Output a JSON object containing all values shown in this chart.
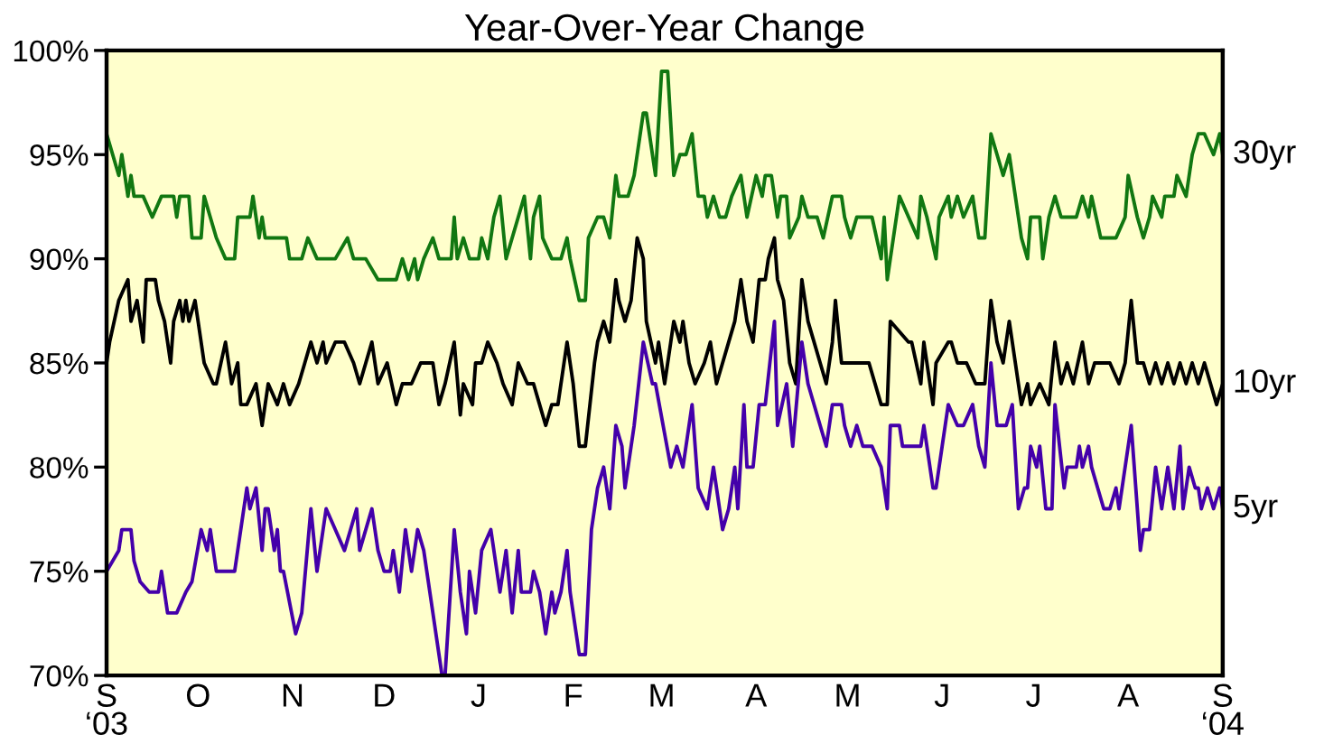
{
  "chart_data": {
    "type": "line",
    "title": "Year-Over-Year Change",
    "xlim": [
      "2003-09-01",
      "2004-09-01"
    ],
    "xticks": [
      {
        "value": "2003-09-01",
        "label": "S\n‘03"
      },
      {
        "value": "2003-10-01",
        "label": "O"
      },
      {
        "value": "2003-11-01",
        "label": "N"
      },
      {
        "value": "2003-12-01",
        "label": "D"
      },
      {
        "value": "2004-01-01",
        "label": "J"
      },
      {
        "value": "2004-02-01",
        "label": "F"
      },
      {
        "value": "2004-03-01",
        "label": "M"
      },
      {
        "value": "2004-04-01",
        "label": "A"
      },
      {
        "value": "2004-05-01",
        "label": "M"
      },
      {
        "value": "2004-06-01",
        "label": "J"
      },
      {
        "value": "2004-07-01",
        "label": "J"
      },
      {
        "value": "2004-08-01",
        "label": "A"
      },
      {
        "value": "2004-09-01",
        "label": "S\n‘04"
      }
    ],
    "ylim": [
      70,
      100
    ],
    "yticks": [
      {
        "value": 70,
        "label": "70%"
      },
      {
        "value": 75,
        "label": "75%"
      },
      {
        "value": 80,
        "label": "80%"
      },
      {
        "value": 85,
        "label": "85%"
      },
      {
        "value": 90,
        "label": "90%"
      },
      {
        "value": 95,
        "label": "95%"
      },
      {
        "value": 100,
        "label": "100%"
      }
    ],
    "grid": false,
    "legend": false,
    "marker": "none",
    "line_style": "solid",
    "series": [
      {
        "name": "30yr",
        "color": "#117711",
        "x": [
          "2003-09-01",
          "2003-09-03",
          "2003-09-05",
          "2003-09-06",
          "2003-09-08",
          "2003-09-09",
          "2003-09-10",
          "2003-09-13",
          "2003-09-16",
          "2003-09-19",
          "2003-09-23",
          "2003-09-24",
          "2003-09-25",
          "2003-09-28",
          "2003-09-29",
          "2003-10-02",
          "2003-10-03",
          "2003-10-05",
          "2003-10-07",
          "2003-10-10",
          "2003-10-13",
          "2003-10-14",
          "2003-10-18",
          "2003-10-19",
          "2003-10-21",
          "2003-10-22",
          "2003-10-23",
          "2003-10-30",
          "2003-10-31",
          "2003-11-04",
          "2003-11-06",
          "2003-11-09",
          "2003-11-15",
          "2003-11-19",
          "2003-11-21",
          "2003-11-25",
          "2003-11-29",
          "2003-12-05",
          "2003-12-07",
          "2003-12-09",
          "2003-12-11",
          "2003-12-12",
          "2003-12-14",
          "2003-12-17",
          "2003-12-19",
          "2003-12-23",
          "2003-12-24",
          "2003-12-25",
          "2003-12-27",
          "2003-12-29",
          "2004-01-01",
          "2004-01-02",
          "2004-01-04",
          "2004-01-06",
          "2004-01-08",
          "2004-01-10",
          "2004-01-12",
          "2004-01-14",
          "2004-01-16",
          "2004-01-18",
          "2004-01-19",
          "2004-01-21",
          "2004-01-22",
          "2004-01-25",
          "2004-01-28",
          "2004-01-30",
          "2004-01-31",
          "2004-02-03",
          "2004-02-05",
          "2004-02-06",
          "2004-02-09",
          "2004-02-11",
          "2004-02-13",
          "2004-02-15",
          "2004-02-16",
          "2004-02-19",
          "2004-02-21",
          "2004-02-24",
          "2004-02-25",
          "2004-02-27",
          "2004-02-28",
          "2004-03-01",
          "2004-03-03",
          "2004-03-05",
          "2004-03-07",
          "2004-03-09",
          "2004-03-11",
          "2004-03-13",
          "2004-03-15",
          "2004-03-16",
          "2004-03-18",
          "2004-03-20",
          "2004-03-22",
          "2004-03-24",
          "2004-03-27",
          "2004-03-29",
          "2004-04-01",
          "2004-04-03",
          "2004-04-04",
          "2004-04-06",
          "2004-04-08",
          "2004-04-09",
          "2004-04-11",
          "2004-04-12",
          "2004-04-15",
          "2004-04-16",
          "2004-04-18",
          "2004-04-21",
          "2004-04-23",
          "2004-04-26",
          "2004-04-29",
          "2004-04-30",
          "2004-05-02",
          "2004-05-04",
          "2004-05-06",
          "2004-05-09",
          "2004-05-12",
          "2004-05-13",
          "2004-05-14",
          "2004-05-17",
          "2004-05-18",
          "2004-05-21",
          "2004-05-24",
          "2004-05-25",
          "2004-05-27",
          "2004-05-30",
          "2004-05-31",
          "2004-06-03",
          "2004-06-04",
          "2004-06-06",
          "2004-06-08",
          "2004-06-11",
          "2004-06-13",
          "2004-06-15",
          "2004-06-17",
          "2004-06-19",
          "2004-06-21",
          "2004-06-23",
          "2004-06-25",
          "2004-06-27",
          "2004-06-29",
          "2004-06-30",
          "2004-07-03",
          "2004-07-04",
          "2004-07-06",
          "2004-07-08",
          "2004-07-10",
          "2004-07-15",
          "2004-07-17",
          "2004-07-19",
          "2004-07-20",
          "2004-07-23",
          "2004-07-28",
          "2004-07-31",
          "2004-08-01",
          "2004-08-04",
          "2004-08-06",
          "2004-08-08",
          "2004-08-09",
          "2004-08-12",
          "2004-08-13",
          "2004-08-16",
          "2004-08-17",
          "2004-08-20",
          "2004-08-22",
          "2004-08-24",
          "2004-08-26",
          "2004-08-29",
          "2004-08-31",
          "2004-09-01"
        ],
        "values": [
          96,
          95,
          94,
          95,
          93,
          94,
          93,
          93,
          92,
          93,
          93,
          92,
          93,
          93,
          91,
          91,
          93,
          92,
          91,
          90,
          90,
          92,
          92,
          93,
          91,
          92,
          91,
          91,
          90,
          90,
          91,
          90,
          90,
          91,
          90,
          90,
          89,
          89,
          90,
          89,
          90,
          89,
          90,
          91,
          90,
          90,
          92,
          90,
          91,
          90,
          90,
          91,
          90,
          92,
          93,
          90,
          91,
          92,
          93,
          90,
          92,
          93,
          91,
          90,
          90,
          91,
          90,
          88,
          88,
          91,
          92,
          92,
          91,
          94,
          93,
          93,
          94,
          97,
          97,
          95,
          94,
          99,
          99,
          94,
          95,
          95,
          96,
          93,
          93,
          92,
          93,
          92,
          92,
          93,
          94,
          92,
          94,
          93,
          94,
          94,
          92,
          93,
          93,
          91,
          92,
          93,
          92,
          92,
          91,
          93,
          93,
          92,
          91,
          92,
          92,
          92,
          90,
          92,
          89,
          92,
          93,
          92,
          91,
          93,
          92,
          90,
          92,
          93,
          92,
          93,
          92,
          93,
          91,
          91,
          96,
          95,
          94,
          95,
          93,
          91,
          90,
          92,
          92,
          90,
          92,
          93,
          92,
          92,
          93,
          92,
          93,
          91,
          91,
          92,
          94,
          92,
          91,
          92,
          93,
          92,
          93,
          93,
          94,
          93,
          95,
          96,
          96,
          95,
          96,
          95
        ]
      },
      {
        "name": "10yr",
        "color": "#000000",
        "x": [
          "2003-09-01",
          "2003-09-02",
          "2003-09-05",
          "2003-09-08",
          "2003-09-09",
          "2003-09-11",
          "2003-09-13",
          "2003-09-14",
          "2003-09-17",
          "2003-09-18",
          "2003-09-20",
          "2003-09-22",
          "2003-09-23",
          "2003-09-25",
          "2003-09-26",
          "2003-09-27",
          "2003-09-28",
          "2003-09-30",
          "2003-10-01",
          "2003-10-03",
          "2003-10-06",
          "2003-10-07",
          "2003-10-10",
          "2003-10-12",
          "2003-10-14",
          "2003-10-15",
          "2003-10-17",
          "2003-10-20",
          "2003-10-22",
          "2003-10-24",
          "2003-10-27",
          "2003-10-29",
          "2003-10-31",
          "2003-11-03",
          "2003-11-05",
          "2003-11-07",
          "2003-11-09",
          "2003-11-11",
          "2003-11-12",
          "2003-11-15",
          "2003-11-18",
          "2003-11-21",
          "2003-11-23",
          "2003-11-25",
          "2003-11-27",
          "2003-11-29",
          "2003-12-02",
          "2003-12-05",
          "2003-12-07",
          "2003-12-10",
          "2003-12-13",
          "2003-12-17",
          "2003-12-19",
          "2003-12-21",
          "2003-12-24",
          "2003-12-26",
          "2003-12-27",
          "2003-12-30",
          "2003-12-31",
          "2004-01-02",
          "2004-01-04",
          "2004-01-07",
          "2004-01-09",
          "2004-01-12",
          "2004-01-14",
          "2004-01-17",
          "2004-01-19",
          "2004-01-21",
          "2004-01-23",
          "2004-01-25",
          "2004-01-27",
          "2004-01-29",
          "2004-01-30",
          "2004-02-01",
          "2004-02-03",
          "2004-02-05",
          "2004-02-08",
          "2004-02-09",
          "2004-02-11",
          "2004-02-13",
          "2004-02-15",
          "2004-02-16",
          "2004-02-18",
          "2004-02-20",
          "2004-02-22",
          "2004-02-24",
          "2004-02-25",
          "2004-02-28",
          "2004-02-29",
          "2004-03-02",
          "2004-03-04",
          "2004-03-05",
          "2004-03-07",
          "2004-03-08",
          "2004-03-10",
          "2004-03-12",
          "2004-03-15",
          "2004-03-17",
          "2004-03-19",
          "2004-03-21",
          "2004-03-23",
          "2004-03-25",
          "2004-03-27",
          "2004-03-29",
          "2004-03-31",
          "2004-04-02",
          "2004-04-04",
          "2004-04-05",
          "2004-04-07",
          "2004-04-08",
          "2004-04-10",
          "2004-04-12",
          "2004-04-14",
          "2004-04-16",
          "2004-04-18",
          "2004-04-20",
          "2004-04-22",
          "2004-04-24",
          "2004-04-26",
          "2004-04-27",
          "2004-04-29",
          "2004-05-01",
          "2004-05-04",
          "2004-05-08",
          "2004-05-12",
          "2004-05-14",
          "2004-05-15",
          "2004-05-21",
          "2004-05-22",
          "2004-05-25",
          "2004-05-26",
          "2004-05-29",
          "2004-05-30",
          "2004-06-03",
          "2004-06-04",
          "2004-06-06",
          "2004-06-09",
          "2004-06-12",
          "2004-06-15",
          "2004-06-17",
          "2004-06-19",
          "2004-06-21",
          "2004-06-23",
          "2004-06-25",
          "2004-06-27",
          "2004-06-29",
          "2004-06-30",
          "2004-07-03",
          "2004-07-06",
          "2004-07-08",
          "2004-07-10",
          "2004-07-12",
          "2004-07-14",
          "2004-07-17",
          "2004-07-19",
          "2004-07-21",
          "2004-07-23",
          "2004-07-26",
          "2004-07-29",
          "2004-07-31",
          "2004-08-02",
          "2004-08-04",
          "2004-08-06",
          "2004-08-08",
          "2004-08-10",
          "2004-08-12",
          "2004-08-14",
          "2004-08-16",
          "2004-08-18",
          "2004-08-20",
          "2004-08-22",
          "2004-08-24",
          "2004-08-26",
          "2004-08-28",
          "2004-08-30",
          "2004-09-01"
        ],
        "values": [
          85,
          86,
          88,
          89,
          87,
          88,
          86,
          89,
          89,
          88,
          87,
          85,
          87,
          88,
          87,
          88,
          87,
          88,
          87,
          85,
          84,
          84,
          86,
          84,
          85,
          83,
          83,
          84,
          82,
          84,
          83,
          84,
          83,
          84,
          85,
          86,
          85,
          86,
          85,
          86,
          86,
          85,
          84,
          85,
          86,
          84,
          85,
          83,
          84,
          84,
          85,
          85,
          83,
          84,
          86,
          82.5,
          84,
          83,
          85,
          85,
          86,
          85,
          84,
          83,
          85,
          84,
          84,
          83,
          82,
          83,
          83,
          85,
          86,
          84,
          81,
          81,
          85,
          86,
          87,
          86,
          89,
          88,
          87,
          88,
          91,
          90,
          87,
          85,
          86,
          84,
          86,
          87,
          86,
          87,
          85,
          84,
          85,
          86,
          84,
          85,
          86,
          87,
          89,
          87,
          86,
          89,
          89,
          90,
          91,
          89,
          88,
          85,
          84,
          89,
          87,
          86,
          85,
          84,
          86,
          88,
          85,
          85,
          85,
          85,
          83,
          83,
          87,
          86,
          86,
          84,
          86,
          83,
          85,
          86,
          86,
          85,
          85,
          84,
          84,
          88,
          86,
          85,
          87,
          85,
          83,
          84,
          83,
          84,
          83,
          86,
          84,
          85,
          84,
          86,
          84,
          85,
          85,
          85,
          84,
          85,
          88,
          85,
          85,
          84,
          85,
          84,
          85,
          84,
          85,
          84,
          85,
          84,
          85,
          84,
          83,
          84
        ]
      },
      {
        "name": "5yr",
        "color": "#4400aa",
        "x": [
          "2003-09-01",
          "2003-09-05",
          "2003-09-06",
          "2003-09-09",
          "2003-09-10",
          "2003-09-12",
          "2003-09-15",
          "2003-09-18",
          "2003-09-19",
          "2003-09-21",
          "2003-09-24",
          "2003-09-27",
          "2003-09-29",
          "2003-10-02",
          "2003-10-04",
          "2003-10-05",
          "2003-10-07",
          "2003-10-13",
          "2003-10-17",
          "2003-10-18",
          "2003-10-20",
          "2003-10-22",
          "2003-10-23",
          "2003-10-24",
          "2003-10-26",
          "2003-10-27",
          "2003-10-28",
          "2003-10-29",
          "2003-11-02",
          "2003-11-04",
          "2003-11-07",
          "2003-11-09",
          "2003-11-12",
          "2003-11-15",
          "2003-11-18",
          "2003-11-20",
          "2003-11-22",
          "2003-11-23",
          "2003-11-27",
          "2003-11-29",
          "2003-12-01",
          "2003-12-03",
          "2003-12-04",
          "2003-12-06",
          "2003-12-08",
          "2003-12-10",
          "2003-12-12",
          "2003-12-14",
          "2003-12-16",
          "2003-12-20",
          "2003-12-21",
          "2003-12-24",
          "2003-12-26",
          "2003-12-28",
          "2003-12-29",
          "2003-12-31",
          "2004-01-02",
          "2004-01-05",
          "2004-01-08",
          "2004-01-10",
          "2004-01-12",
          "2004-01-14",
          "2004-01-15",
          "2004-01-18",
          "2004-01-19",
          "2004-01-21",
          "2004-01-23",
          "2004-01-25",
          "2004-01-26",
          "2004-01-28",
          "2004-01-30",
          "2004-01-31",
          "2004-02-03",
          "2004-02-05",
          "2004-02-07",
          "2004-02-09",
          "2004-02-11",
          "2004-02-12",
          "2004-02-13",
          "2004-02-15",
          "2004-02-17",
          "2004-02-18",
          "2004-02-21",
          "2004-02-24",
          "2004-02-27",
          "2004-02-28",
          "2004-03-04",
          "2004-03-06",
          "2004-03-08",
          "2004-03-11",
          "2004-03-13",
          "2004-03-16",
          "2004-03-18",
          "2004-03-21",
          "2004-03-23",
          "2004-03-25",
          "2004-03-26",
          "2004-03-28",
          "2004-03-29",
          "2004-03-31",
          "2004-04-02",
          "2004-04-04",
          "2004-04-07",
          "2004-04-08",
          "2004-04-11",
          "2004-04-13",
          "2004-04-16",
          "2004-04-18",
          "2004-04-22",
          "2004-04-24",
          "2004-04-26",
          "2004-04-29",
          "2004-04-30",
          "2004-05-02",
          "2004-05-04",
          "2004-05-06",
          "2004-05-09",
          "2004-05-12",
          "2004-05-14",
          "2004-05-15",
          "2004-05-18",
          "2004-05-19",
          "2004-05-25",
          "2004-05-26",
          "2004-05-29",
          "2004-05-30",
          "2004-06-01",
          "2004-06-03",
          "2004-06-06",
          "2004-06-08",
          "2004-06-11",
          "2004-06-13",
          "2004-06-15",
          "2004-06-17",
          "2004-06-19",
          "2004-06-22",
          "2004-06-24",
          "2004-06-26",
          "2004-06-28",
          "2004-06-29",
          "2004-06-30",
          "2004-07-02",
          "2004-07-03",
          "2004-07-05",
          "2004-07-07",
          "2004-07-08",
          "2004-07-11",
          "2004-07-12",
          "2004-07-15",
          "2004-07-16",
          "2004-07-17",
          "2004-07-19",
          "2004-07-20",
          "2004-07-22",
          "2004-07-24",
          "2004-07-26",
          "2004-07-28",
          "2004-07-29",
          "2004-08-02",
          "2004-08-05",
          "2004-08-06",
          "2004-08-08",
          "2004-08-10",
          "2004-08-12",
          "2004-08-14",
          "2004-08-16",
          "2004-08-18",
          "2004-08-19",
          "2004-08-21",
          "2004-08-23",
          "2004-08-24",
          "2004-08-25",
          "2004-08-27",
          "2004-08-29",
          "2004-08-31",
          "2004-09-01"
        ],
        "values": [
          75,
          76,
          77,
          77,
          75.5,
          74.5,
          74,
          74,
          75,
          73,
          73,
          74,
          74.5,
          77,
          76,
          77,
          75,
          75,
          79,
          78,
          79,
          76,
          78,
          78,
          76,
          77,
          75,
          75,
          72,
          73,
          78,
          75,
          78,
          77,
          76,
          77,
          78,
          76,
          78,
          76,
          75,
          75,
          76,
          74,
          77,
          75,
          77,
          76,
          74,
          70,
          70,
          77,
          74,
          72,
          75,
          73,
          76,
          77,
          74,
          76,
          73,
          76,
          74,
          74,
          75,
          74,
          72,
          74,
          73,
          74,
          76,
          74,
          71,
          71,
          77,
          79,
          80,
          79,
          78,
          82,
          81,
          79,
          82,
          86,
          84,
          84,
          80,
          81,
          80,
          83,
          79,
          78,
          80,
          77,
          78,
          80,
          78,
          83,
          80,
          80,
          83,
          83,
          87,
          82,
          84,
          81,
          86,
          84,
          82,
          81,
          83,
          83,
          82,
          81,
          82,
          81,
          81,
          80,
          78,
          82,
          82,
          81,
          81,
          82,
          79,
          79,
          81,
          83,
          82,
          82,
          83,
          81,
          80,
          85,
          82,
          82,
          83,
          78,
          79,
          79,
          81,
          80,
          81,
          78,
          78,
          83,
          79,
          80,
          80,
          81,
          80,
          81,
          80,
          79,
          78,
          78,
          79,
          78,
          82,
          76,
          77,
          77,
          80,
          78,
          80,
          78,
          81,
          78,
          80,
          79,
          79,
          78,
          79,
          78,
          79,
          78
        ]
      }
    ]
  }
}
